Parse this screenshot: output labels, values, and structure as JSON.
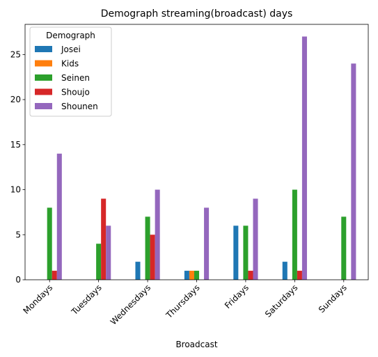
{
  "chart_data": {
    "type": "bar",
    "title": "Demograph streaming(broadcast) days",
    "xlabel": "Broadcast",
    "ylabel": "",
    "ylim": [
      0,
      28.35
    ],
    "yticks": [
      0,
      5,
      10,
      15,
      20,
      25
    ],
    "legend": {
      "title": "Demograph",
      "placement": "upper-left"
    },
    "categories": [
      "Mondays",
      "Tuesdays",
      "Wednesdays",
      "Thursdays",
      "Fridays",
      "Saturdays",
      "Sundays"
    ],
    "series": [
      {
        "name": "Josei",
        "color": "#1f77b4",
        "values": [
          0,
          0,
          2,
          1,
          6,
          2,
          0
        ]
      },
      {
        "name": "Kids",
        "color": "#ff7f0e",
        "values": [
          0,
          0,
          0,
          1,
          0,
          0,
          0
        ]
      },
      {
        "name": "Seinen",
        "color": "#2ca02c",
        "values": [
          8,
          4,
          7,
          1,
          6,
          10,
          7
        ]
      },
      {
        "name": "Shoujo",
        "color": "#d62728",
        "values": [
          1,
          9,
          5,
          0,
          1,
          1,
          0
        ]
      },
      {
        "name": "Shounen",
        "color": "#9467bd",
        "values": [
          14,
          6,
          10,
          8,
          9,
          27,
          24
        ]
      }
    ],
    "grid": false
  }
}
